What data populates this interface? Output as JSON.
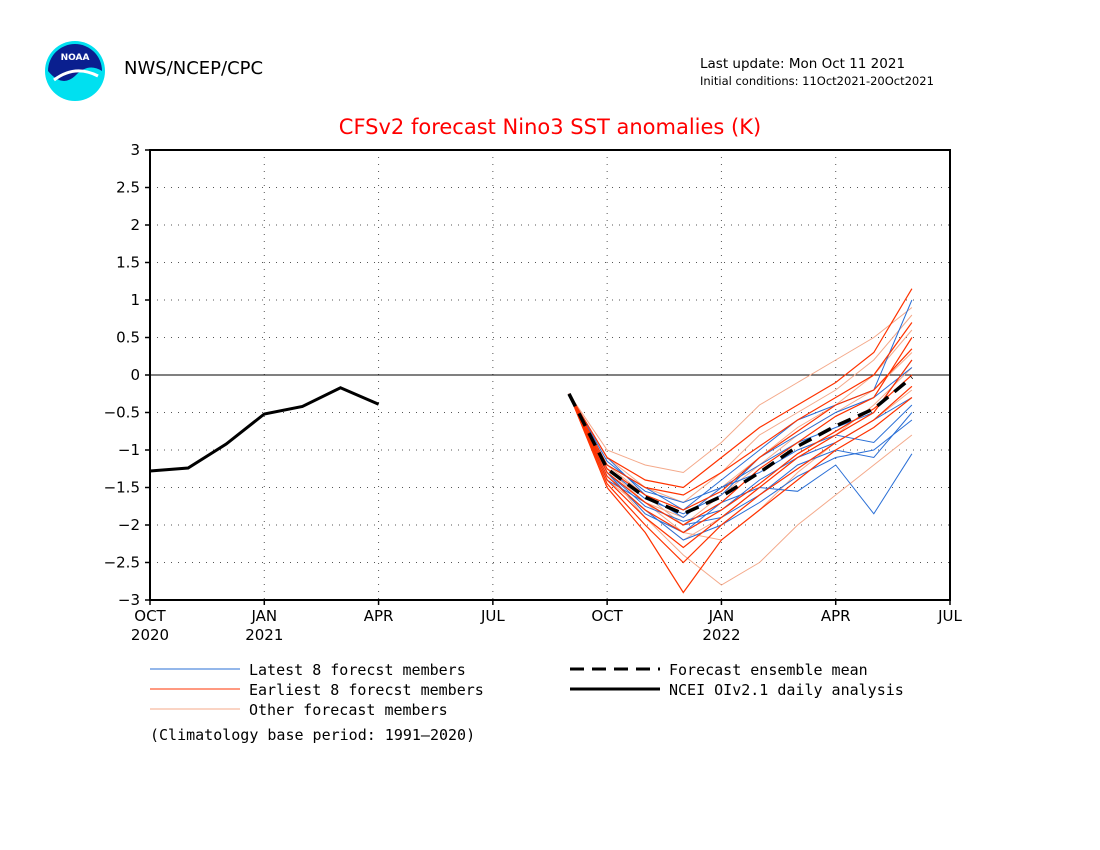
{
  "header": {
    "org": "NWS/NCEP/CPC",
    "last_update": "Last update: Mon Oct 11 2021",
    "initial_conditions": "Initial conditions: 11Oct2021-20Oct2021",
    "logo_text": "NOAA"
  },
  "colors": {
    "latest": "#2a6fd6",
    "earliest": "#ff3300",
    "other": "#f4a98a",
    "mean": "#000000",
    "obs": "#000000",
    "title": "#ff0000"
  },
  "chart_data": {
    "type": "line",
    "title": "CFSv2 forecast Nino3 SST anomalies (K)",
    "xlabel": "",
    "ylabel": "",
    "ylim": [
      -3,
      3
    ],
    "yticks": [
      -3,
      -2.5,
      -2,
      -1.5,
      -1,
      -0.5,
      0,
      0.5,
      1,
      1.5,
      2,
      2.5,
      3
    ],
    "ytick_labels": [
      "−3",
      "−2.5",
      "−2",
      "−1.5",
      "−1",
      "−0.5",
      "0",
      "0.5",
      "1",
      "1.5",
      "2",
      "2.5",
      "3"
    ],
    "xlim": [
      "2020-10",
      "2022-07"
    ],
    "xticks": [
      {
        "date": "2020-10",
        "label": "OCT",
        "year": "2020"
      },
      {
        "date": "2021-01",
        "label": "JAN",
        "year": "2021"
      },
      {
        "date": "2021-04",
        "label": "APR",
        "year": ""
      },
      {
        "date": "2021-07",
        "label": "JUL",
        "year": ""
      },
      {
        "date": "2021-10",
        "label": "OCT",
        "year": ""
      },
      {
        "date": "2022-01",
        "label": "JAN",
        "year": "2022"
      },
      {
        "date": "2022-04",
        "label": "APR",
        "year": ""
      },
      {
        "date": "2022-07",
        "label": "JUL",
        "year": ""
      }
    ],
    "grid": true,
    "zero_line": true,
    "legend_position": "bottom",
    "observed": {
      "name": "NCEI OIv2.1 daily analysis",
      "x": [
        "2020-10",
        "2020-11",
        "2020-12",
        "2021-01",
        "2021-02",
        "2021-03",
        "2021-04"
      ],
      "y": [
        -1.28,
        -1.24,
        -0.92,
        -0.52,
        -0.42,
        -0.17,
        -0.39
      ]
    },
    "forecast_x": [
      "2021-09",
      "2021-10",
      "2021-11",
      "2021-12",
      "2022-01",
      "2022-02",
      "2022-03",
      "2022-04",
      "2022-05",
      "2022-06"
    ],
    "ensemble_mean": {
      "name": "Forecast ensemble mean",
      "y": [
        -0.25,
        -1.25,
        -1.63,
        -1.85,
        -1.62,
        -1.3,
        -0.95,
        -0.68,
        -0.45,
        -0.03
      ]
    },
    "member_groups": [
      {
        "name": "Latest 8 forecst members",
        "color_key": "latest",
        "members": [
          [
            -0.25,
            -1.3,
            -1.85,
            -2.1,
            -1.7,
            -1.5,
            -1.55,
            -1.2,
            -1.85,
            -1.05
          ],
          [
            -0.25,
            -1.1,
            -1.6,
            -1.9,
            -1.5,
            -1.2,
            -0.9,
            -0.7,
            -0.5,
            0.2
          ],
          [
            -0.25,
            -1.4,
            -1.7,
            -2.0,
            -1.9,
            -1.6,
            -1.2,
            -1.0,
            -1.1,
            -0.5
          ],
          [
            -0.25,
            -1.2,
            -1.5,
            -1.8,
            -1.4,
            -1.0,
            -0.6,
            -0.4,
            -0.2,
            1.0
          ],
          [
            -0.25,
            -1.3,
            -1.75,
            -1.95,
            -1.8,
            -1.4,
            -1.1,
            -0.9,
            -0.6,
            -0.3
          ],
          [
            -0.25,
            -1.15,
            -1.55,
            -1.7,
            -1.5,
            -1.3,
            -1.0,
            -0.8,
            -0.9,
            -0.4
          ],
          [
            -0.25,
            -1.35,
            -1.8,
            -2.2,
            -2.0,
            -1.7,
            -1.35,
            -1.1,
            -1.0,
            -0.6
          ],
          [
            -0.25,
            -1.25,
            -1.65,
            -1.85,
            -1.6,
            -1.1,
            -0.8,
            -0.5,
            -0.3,
            0.1
          ]
        ]
      },
      {
        "name": "Earliest 8 forecst members",
        "color_key": "earliest",
        "members": [
          [
            -0.25,
            -1.2,
            -1.5,
            -1.6,
            -1.3,
            -0.95,
            -0.6,
            -0.3,
            0.0,
            0.7
          ],
          [
            -0.25,
            -1.4,
            -1.9,
            -2.3,
            -1.9,
            -1.5,
            -1.1,
            -0.8,
            -0.5,
            0.2
          ],
          [
            -0.25,
            -1.3,
            -1.7,
            -2.0,
            -1.7,
            -1.25,
            -0.9,
            -0.55,
            -0.3,
            0.5
          ],
          [
            -0.25,
            -1.5,
            -2.1,
            -2.9,
            -2.2,
            -1.8,
            -1.4,
            -1.0,
            -0.7,
            -0.3
          ],
          [
            -0.25,
            -1.1,
            -1.4,
            -1.5,
            -1.1,
            -0.7,
            -0.4,
            -0.1,
            0.3,
            1.15
          ],
          [
            -0.25,
            -1.35,
            -1.8,
            -2.1,
            -1.8,
            -1.45,
            -1.05,
            -0.75,
            -0.45,
            0.0
          ],
          [
            -0.25,
            -1.25,
            -1.6,
            -1.8,
            -1.55,
            -1.1,
            -0.75,
            -0.4,
            -0.2,
            0.35
          ],
          [
            -0.25,
            -1.45,
            -2.0,
            -2.5,
            -2.0,
            -1.6,
            -1.25,
            -0.9,
            -0.6,
            -0.15
          ]
        ]
      },
      {
        "name": "Other forecast members",
        "color_key": "other",
        "members": [
          [
            -0.25,
            -1.3,
            -1.9,
            -2.4,
            -2.8,
            -2.5,
            -2.0,
            -1.6,
            -1.2,
            -0.8
          ],
          [
            -0.25,
            -1.0,
            -1.2,
            -1.3,
            -0.9,
            -0.4,
            -0.1,
            0.2,
            0.5,
            0.9
          ],
          [
            -0.25,
            -1.2,
            -1.6,
            -2.0,
            -1.6,
            -1.2,
            -0.8,
            -0.5,
            -0.2,
            0.3
          ],
          [
            -0.25,
            -1.4,
            -1.8,
            -2.2,
            -1.9,
            -1.5,
            -1.1,
            -0.8,
            -0.4,
            0.1
          ],
          [
            -0.25,
            -1.3,
            -1.7,
            -1.9,
            -1.5,
            -1.1,
            -0.7,
            -0.4,
            0.0,
            0.6
          ],
          [
            -0.25,
            -1.1,
            -1.5,
            -1.7,
            -1.3,
            -0.8,
            -0.5,
            -0.2,
            0.2,
            0.8
          ],
          [
            -0.25,
            -1.25,
            -1.7,
            -2.1,
            -2.2,
            -1.8,
            -1.3,
            -0.9,
            -0.6,
            -0.2
          ]
        ]
      }
    ],
    "legend": [
      {
        "label": "Latest 8 forecst members",
        "style": "thin",
        "color_key": "latest"
      },
      {
        "label": "Earliest 8 forecst members",
        "style": "thin",
        "color_key": "earliest"
      },
      {
        "label": "Other forecast members",
        "style": "thin",
        "color_key": "other"
      },
      {
        "label": "Forecast ensemble mean",
        "style": "dashed",
        "color_key": "mean"
      },
      {
        "label": "NCEI OIv2.1 daily analysis",
        "style": "solid",
        "color_key": "obs"
      }
    ],
    "note": "(Climatology base period: 1991—2020)"
  }
}
